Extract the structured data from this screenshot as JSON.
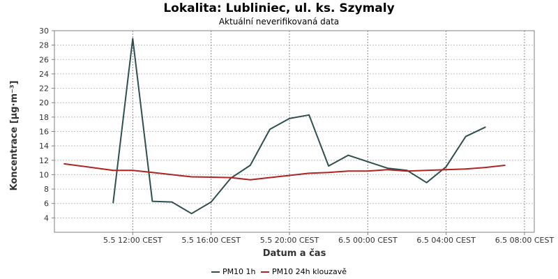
{
  "chart_data": {
    "type": "line",
    "title": "Lokalita: Lubliniec, ul. ks. Szymaly",
    "subtitle": "Aktuální neverifikovaná data",
    "xlabel": "Datum a čas",
    "ylabel": "Koncentrace [µg·m⁻³]",
    "ylim": [
      2,
      30
    ],
    "yticks": [
      4,
      6,
      8,
      10,
      12,
      14,
      16,
      18,
      20,
      22,
      24,
      26,
      28,
      30
    ],
    "xlim": [
      "5.5 08:00",
      "6.5 08:30"
    ],
    "xticks": [
      {
        "t": "5.5 12:00",
        "label": "5.5 12:00 CEST"
      },
      {
        "t": "5.5 16:00",
        "label": "5.5 16:00 CEST"
      },
      {
        "t": "5.5 20:00",
        "label": "5.5 20:00 CEST"
      },
      {
        "t": "6.5 00:00",
        "label": "6.5 00:00 CEST"
      },
      {
        "t": "6.5 04:00",
        "label": "6.5 04:00 CEST"
      },
      {
        "t": "6.5 08:00",
        "label": "6.5 08:00 CEST"
      }
    ],
    "grid": true,
    "legend_position": "bottom",
    "series": [
      {
        "name": "PM10 1h",
        "color": "#2f4f4f",
        "points": [
          {
            "t": "5.5 11:00",
            "y": 6.1
          },
          {
            "t": "5.5 12:00",
            "y": 28.9
          },
          {
            "t": "5.5 13:00",
            "y": 6.3
          },
          {
            "t": "5.5 14:00",
            "y": 6.2
          },
          {
            "t": "5.5 15:00",
            "y": 4.6
          },
          {
            "t": "5.5 16:00",
            "y": 6.2
          },
          {
            "t": "5.5 17:00",
            "y": 9.5
          },
          {
            "t": "5.5 18:00",
            "y": 11.3
          },
          {
            "t": "5.5 19:00",
            "y": 16.3
          },
          {
            "t": "5.5 20:00",
            "y": 17.8
          },
          {
            "t": "5.5 21:00",
            "y": 18.3
          },
          {
            "t": "5.5 22:00",
            "y": 11.2
          },
          {
            "t": "5.5 23:00",
            "y": 12.7
          },
          {
            "t": "6.5 00:00",
            "y": 11.8
          },
          {
            "t": "6.5 01:00",
            "y": 10.9
          },
          {
            "t": "6.5 02:00",
            "y": 10.6
          },
          {
            "t": "6.5 03:00",
            "y": 8.9
          },
          {
            "t": "6.5 04:00",
            "y": 11.1
          },
          {
            "t": "6.5 05:00",
            "y": 15.3
          },
          {
            "t": "6.5 06:00",
            "y": 16.6
          }
        ]
      },
      {
        "name": "PM10 24h klouzavě",
        "color": "#b22222",
        "points": [
          {
            "t": "5.5 08:30",
            "y": 11.5
          },
          {
            "t": "5.5 11:00",
            "y": 10.6
          },
          {
            "t": "5.5 12:00",
            "y": 10.6
          },
          {
            "t": "5.5 13:00",
            "y": 10.3
          },
          {
            "t": "5.5 14:00",
            "y": 10.0
          },
          {
            "t": "5.5 15:00",
            "y": 9.7
          },
          {
            "t": "5.5 16:00",
            "y": 9.65
          },
          {
            "t": "5.5 17:00",
            "y": 9.6
          },
          {
            "t": "5.5 18:00",
            "y": 9.3
          },
          {
            "t": "5.5 19:00",
            "y": 9.6
          },
          {
            "t": "5.5 20:00",
            "y": 9.9
          },
          {
            "t": "5.5 21:00",
            "y": 10.2
          },
          {
            "t": "5.5 22:00",
            "y": 10.3
          },
          {
            "t": "5.5 23:00",
            "y": 10.5
          },
          {
            "t": "6.5 00:00",
            "y": 10.5
          },
          {
            "t": "6.5 01:00",
            "y": 10.7
          },
          {
            "t": "6.5 02:00",
            "y": 10.5
          },
          {
            "t": "6.5 03:00",
            "y": 10.6
          },
          {
            "t": "6.5 04:00",
            "y": 10.7
          },
          {
            "t": "6.5 05:00",
            "y": 10.8
          },
          {
            "t": "6.5 06:00",
            "y": 11.0
          },
          {
            "t": "6.5 07:00",
            "y": 11.3
          }
        ]
      }
    ]
  }
}
